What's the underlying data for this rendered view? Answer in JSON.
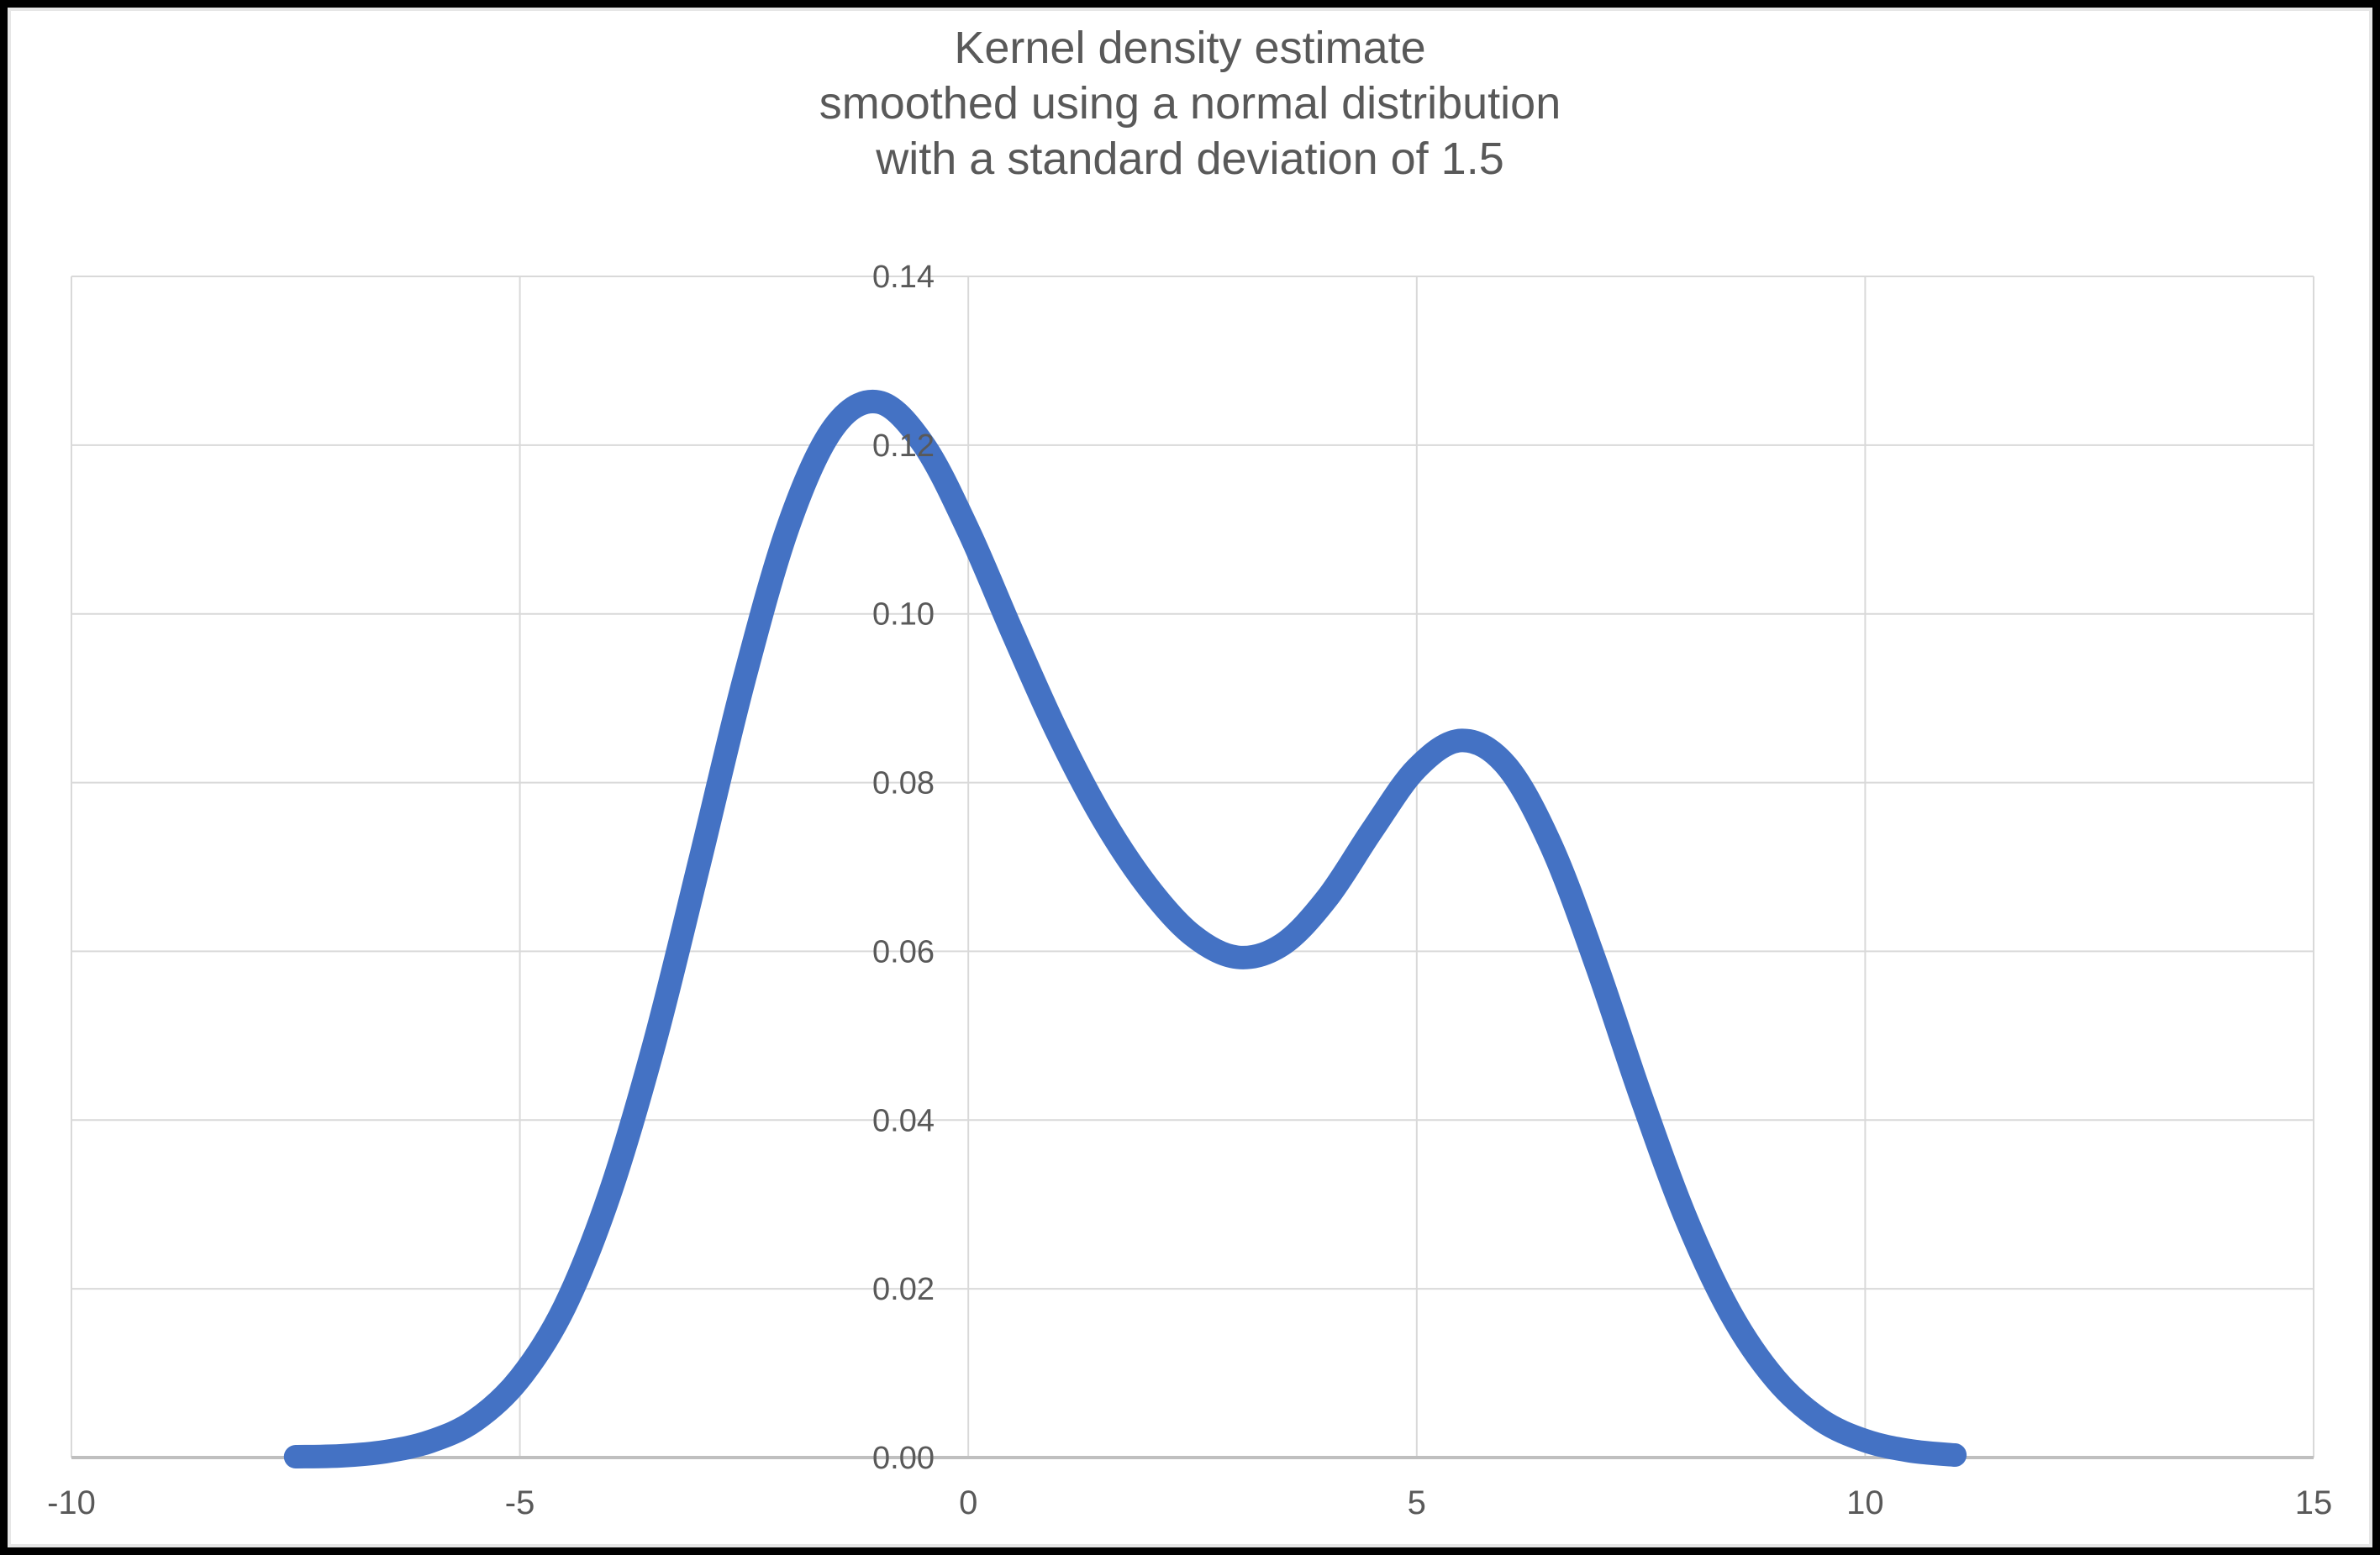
{
  "title": {
    "lines": [
      "Kernel density estimate",
      "smoothed using a normal distribution",
      "with a standard deviation of 1.5"
    ]
  },
  "chart_data": {
    "type": "line",
    "title": "Kernel density estimate smoothed using a normal distribution with a standard deviation of 1.5",
    "xlabel": "",
    "ylabel": "",
    "xlim": [
      -10,
      15
    ],
    "ylim": [
      0,
      0.14
    ],
    "x_ticks": [
      -10,
      -5,
      0,
      5,
      10,
      15
    ],
    "y_ticks": [
      0,
      0.02,
      0.04,
      0.06,
      0.08,
      0.1,
      0.12,
      0.14
    ],
    "y_tick_decimals": 2,
    "grid": true,
    "legend": "none",
    "smooth": true,
    "series": [
      {
        "x": [
          -7.5,
          -7.0,
          -6.5,
          -6.0,
          -5.5,
          -5.0,
          -4.5,
          -4.0,
          -3.5,
          -3.0,
          -2.5,
          -2.0,
          -1.5,
          -1.0,
          -0.5,
          0.0,
          0.5,
          1.0,
          1.5,
          2.0,
          2.5,
          3.0,
          3.5,
          4.0,
          4.5,
          5.0,
          5.5,
          6.0,
          6.5,
          7.0,
          7.5,
          8.0,
          8.5,
          9.0,
          9.5,
          10.0,
          10.5,
          11.0
        ],
        "y": [
          0.0001,
          0.0002,
          0.0007,
          0.0019,
          0.0044,
          0.0094,
          0.0179,
          0.0312,
          0.0491,
          0.0704,
          0.0922,
          0.1106,
          0.1221,
          0.1251,
          0.1201,
          0.1099,
          0.0976,
          0.0858,
          0.0757,
          0.0677,
          0.0619,
          0.0593,
          0.0608,
          0.0663,
          0.0743,
          0.0817,
          0.085,
          0.082,
          0.0725,
          0.0585,
          0.0428,
          0.0284,
          0.0171,
          0.0093,
          0.0045,
          0.002,
          0.0008,
          0.0003
        ]
      }
    ],
    "colors": {
      "line": "#4472C4",
      "gridline": "#D9D9D9",
      "axis_line": "#BFBFBF",
      "tick_label": "#595959",
      "title": "#595959",
      "background": "#FFFFFF",
      "frame": "#000000"
    },
    "line_width": 28
  }
}
